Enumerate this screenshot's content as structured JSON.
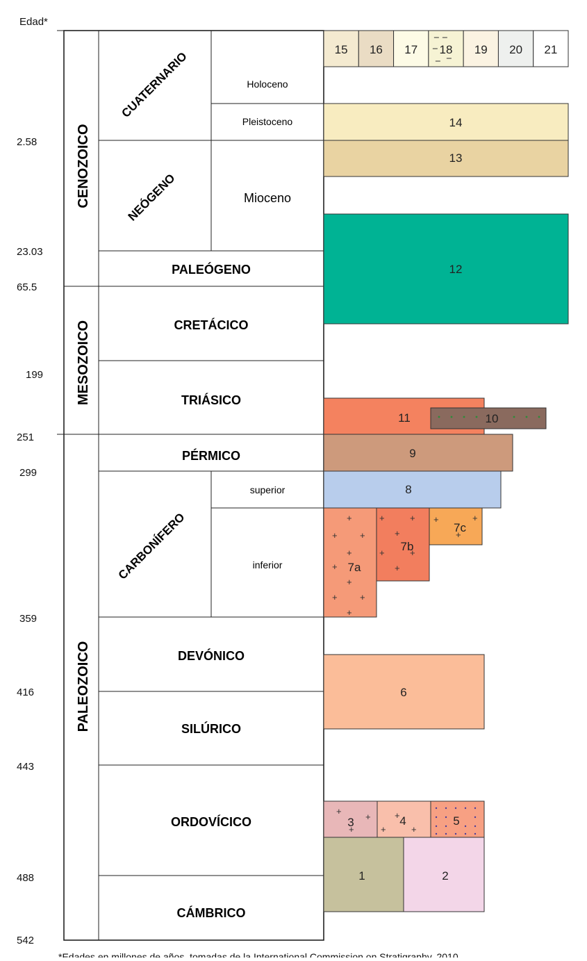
{
  "header": {
    "age_label": "Edad*"
  },
  "ages": [
    "2.58",
    "23.03",
    "65.5",
    "199",
    "251",
    "299",
    "359",
    "416",
    "443",
    "488",
    "542"
  ],
  "eras": {
    "cenozoico": "CENOZOICO",
    "mesozoico": "MESOZOICO",
    "paleozoico": "PALEOZOICO"
  },
  "periods": {
    "cuaternario": "CUATERNARIO",
    "neogeno": "NEÓGENO",
    "paleogeno": "PALEÓGENO",
    "cretacico": "CRETÁCICO",
    "triasico": "TRIÁSICO",
    "permico": "PÉRMICO",
    "carbonifero": "CARBONÍFERO",
    "devonico": "DEVÓNICO",
    "silurico": "SILÚRICO",
    "ordovicico": "ORDOVÍCICO",
    "cambrico": "CÁMBRICO"
  },
  "epochs": {
    "holoceno": "Holoceno",
    "pleistoceno": "Pleistoceno",
    "mioceno": "Mioceno",
    "superior": "superior",
    "inferior": "inferior"
  },
  "legend": {
    "items": [
      "15",
      "16",
      "17",
      "18",
      "19",
      "20",
      "21"
    ],
    "colors": [
      "#f4ead0",
      "#eadcc4",
      "#fdfbe6",
      "#f6f3d4",
      "#fbf3e2",
      "#eef0ee",
      "#ffffff"
    ]
  },
  "units": {
    "u14": {
      "label": "14",
      "color": "#f8ecc0"
    },
    "u13": {
      "label": "13",
      "color": "#e9d3a2"
    },
    "u12": {
      "label": "12",
      "color": "#00b394"
    },
    "u11": {
      "label": "11",
      "color": "#f4825f"
    },
    "u10": {
      "label": "10",
      "color": "#8a6a5e"
    },
    "u9": {
      "label": "9",
      "color": "#cd9a7c"
    },
    "u8": {
      "label": "8",
      "color": "#b8cdec"
    },
    "u7a": {
      "label": "7a",
      "color": "#f59a78"
    },
    "u7b": {
      "label": "7b",
      "color": "#f27e5e"
    },
    "u7c": {
      "label": "7c",
      "color": "#f7a857"
    },
    "u6": {
      "label": "6",
      "color": "#fbbd99"
    },
    "u3": {
      "label": "3",
      "color": "#e8b7b8"
    },
    "u4": {
      "label": "4",
      "color": "#f9bfab"
    },
    "u5": {
      "label": "5",
      "color": "#f7a083"
    },
    "u1": {
      "label": "1",
      "color": "#c6c19d"
    },
    "u2": {
      "label": "2",
      "color": "#f3d6e8"
    }
  },
  "footnote": "*Edades en millones de años, tomadas de la International Commission on Stratigraphy, 2010"
}
